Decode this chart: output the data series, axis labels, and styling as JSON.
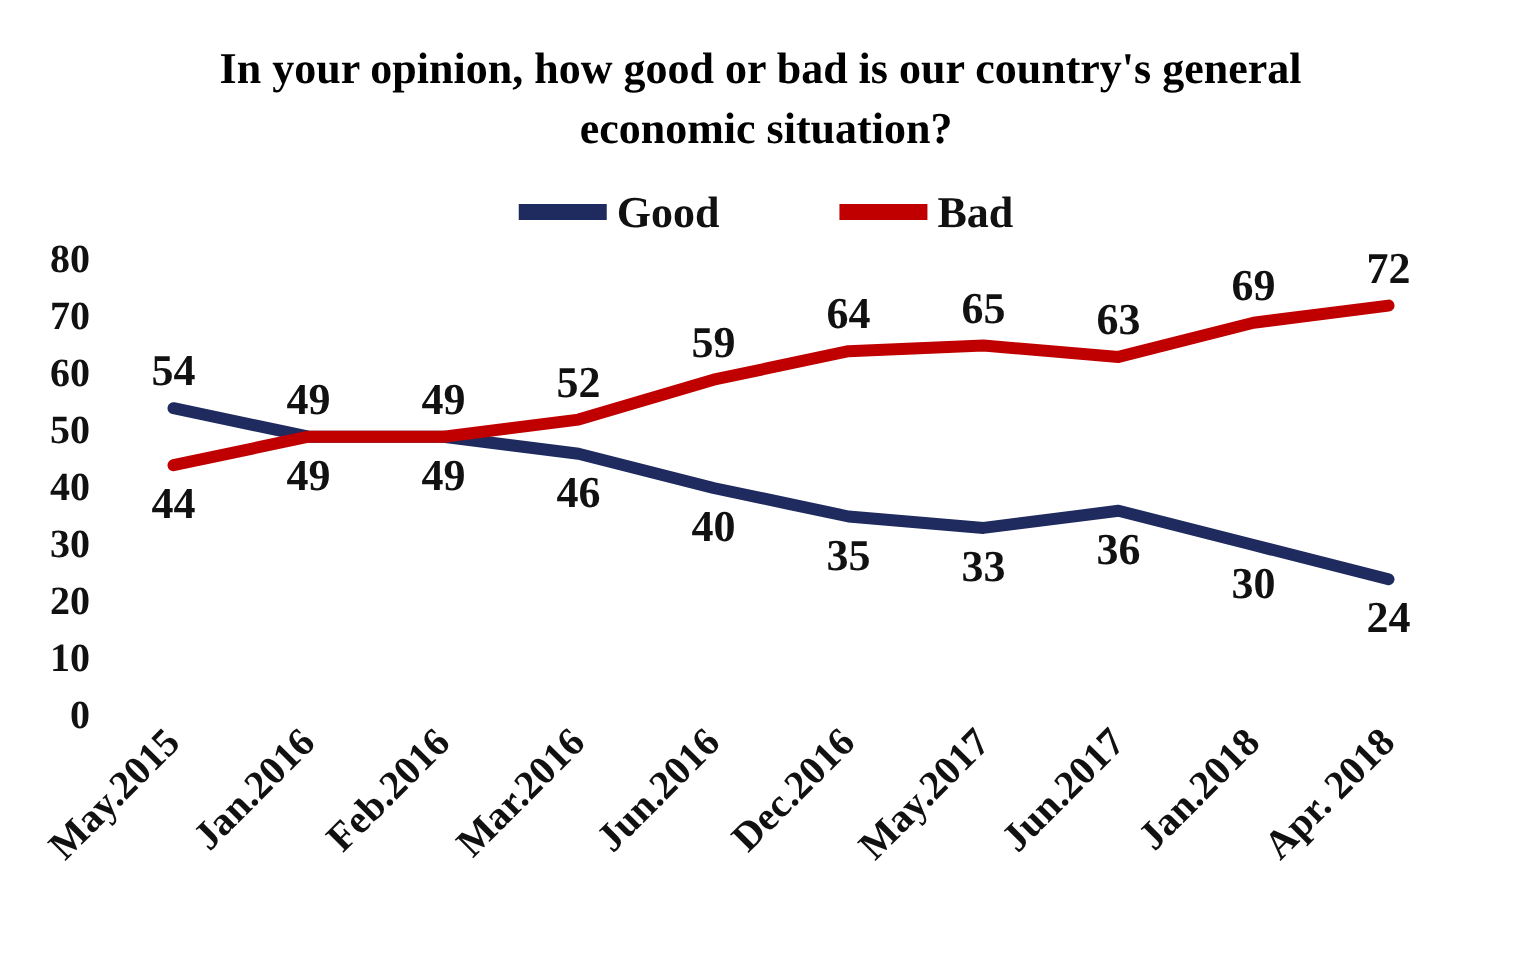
{
  "chart_data": {
    "type": "line",
    "title": "In your opinion, how good or bad is our country's general economic situation?",
    "categories": [
      "May.2015",
      "Jan.2016",
      "Feb.2016",
      "Mar.2016",
      "Jun.2016",
      "Dec.2016",
      "May.2017",
      "Jun.2017",
      "Jan.2018",
      "Apr. 2018"
    ],
    "series": [
      {
        "name": "Good",
        "color": "#1f2a5e",
        "values": [
          54,
          49,
          49,
          46,
          40,
          35,
          33,
          36,
          30,
          24
        ]
      },
      {
        "name": "Bad",
        "color": "#c00000",
        "values": [
          44,
          49,
          49,
          52,
          59,
          64,
          65,
          63,
          69,
          72
        ]
      }
    ],
    "ylim": [
      0,
      80
    ],
    "yticks": [
      0,
      10,
      20,
      30,
      40,
      50,
      60,
      70,
      80
    ],
    "grid": false,
    "legend": "top",
    "marker": "none",
    "line_style": "solid",
    "data_labels": true
  }
}
